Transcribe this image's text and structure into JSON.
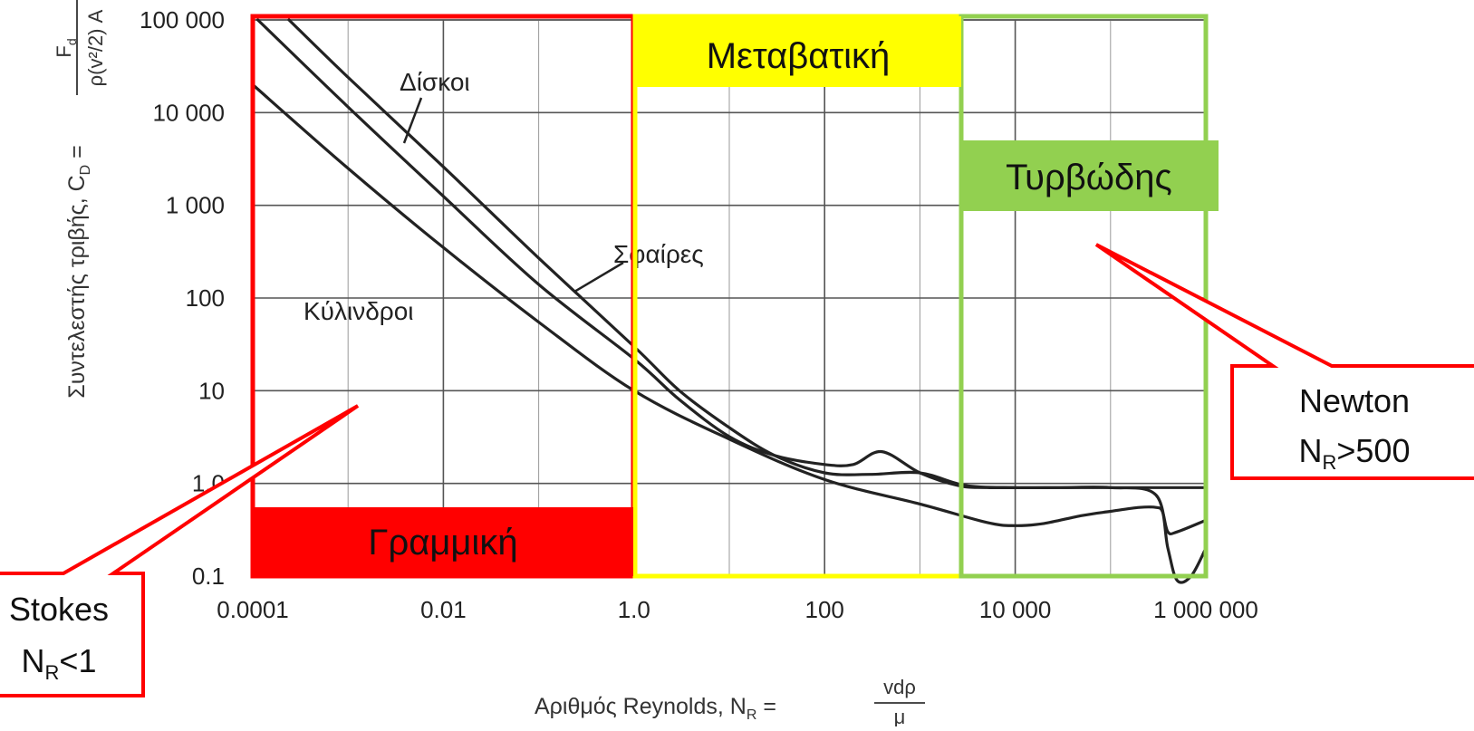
{
  "chart_data": {
    "type": "line",
    "x_scale": "log",
    "y_scale": "log",
    "xlim": [
      0.0001,
      1000000
    ],
    "ylim": [
      0.1,
      100000
    ],
    "grid": true,
    "x_tick_labels": [
      "0.0001",
      "0.01",
      "1.0",
      "100",
      "10 000",
      "1 000 000"
    ],
    "y_tick_labels": [
      "100 000",
      "10 000",
      "1 000",
      "100",
      "10",
      "1.0",
      "0.1"
    ],
    "xlabel": "Αριθμός Reynolds, N",
    "xlabel_sub": "R",
    "xlabel_eq": " = ",
    "xlabel_num": "vdρ",
    "xlabel_den": "μ",
    "ylabel": "Συντελεστής τριβής, C",
    "ylabel_sub": "D",
    "ylabel_eq": " = ",
    "ylabel_num": "F",
    "ylabel_num_sub": "d",
    "ylabel_den": "ρ(v²/2) A",
    "series": [
      {
        "name": "Δίσκοι",
        "points": [
          [
            0.000113,
            100000
          ],
          [
            0.001,
            11500
          ],
          [
            0.01,
            1250
          ],
          [
            0.1,
            140
          ],
          [
            1,
            22
          ],
          [
            3,
            8
          ],
          [
            10,
            3.2
          ],
          [
            30,
            2
          ],
          [
            100,
            1.6
          ],
          [
            200,
            1.6
          ],
          [
            400,
            2.2
          ],
          [
            1000,
            1.3
          ],
          [
            2500,
            0.95
          ],
          [
            5000,
            0.9
          ],
          [
            20000,
            0.9
          ],
          [
            100000,
            0.9
          ],
          [
            1000000,
            0.9
          ]
        ]
      },
      {
        "name": "Σφαίρες",
        "points": [
          [
            0.00024,
            100000
          ],
          [
            0.001,
            24000
          ],
          [
            0.01,
            2600
          ],
          [
            0.1,
            270
          ],
          [
            1,
            30
          ],
          [
            3,
            10
          ],
          [
            10,
            4
          ],
          [
            30,
            2
          ],
          [
            100,
            1.3
          ],
          [
            300,
            1.25
          ],
          [
            1000,
            1.3
          ],
          [
            3000,
            0.95
          ],
          [
            10000,
            0.9
          ],
          [
            30000,
            0.9
          ],
          [
            100000,
            0.9
          ],
          [
            300000,
            0.75
          ],
          [
            400000,
            0.2
          ],
          [
            500000,
            0.09
          ],
          [
            700000,
            0.1
          ],
          [
            1000000,
            0.2
          ]
        ]
      },
      {
        "name": "Κύλινδροι",
        "points": [
          [
            0.0001,
            20000
          ],
          [
            0.001,
            2500
          ],
          [
            0.01,
            350
          ],
          [
            0.1,
            55
          ],
          [
            1,
            10
          ],
          [
            10,
            3
          ],
          [
            100,
            1.1
          ],
          [
            1000,
            0.6
          ],
          [
            5000,
            0.38
          ],
          [
            10000,
            0.35
          ],
          [
            20000,
            0.37
          ],
          [
            50000,
            0.45
          ],
          [
            100000,
            0.5
          ],
          [
            200000,
            0.55
          ],
          [
            300000,
            0.55
          ],
          [
            350000,
            0.5
          ],
          [
            400000,
            0.3
          ],
          [
            500000,
            0.3
          ],
          [
            1000000,
            0.4
          ]
        ]
      }
    ],
    "curve_labels": {
      "disks": "Δίσκοι",
      "spheres": "Σφαίρες",
      "cylinders": "Κύλινδροι"
    },
    "regions": [
      {
        "name": "Γραμμική",
        "from": 0.0001,
        "to": 1,
        "color": "#ff0000",
        "label_fill": "#ff0000"
      },
      {
        "name": "Μεταβατική",
        "from": 1,
        "to": 2500,
        "color": "#ffff00",
        "label_fill": "#ffff00"
      },
      {
        "name": "Τυρβώδης",
        "from": 2500,
        "to": 1000000,
        "color": "#92d050",
        "label_fill": "#92d050"
      }
    ],
    "callouts": {
      "stokes": {
        "line1": "Stokes",
        "line2_main": "N",
        "line2_sub": "R",
        "line2_rest": "<1"
      },
      "newton": {
        "line1": "Newton",
        "line2_main": "N",
        "line2_sub": "R",
        "line2_rest": ">500"
      }
    }
  }
}
